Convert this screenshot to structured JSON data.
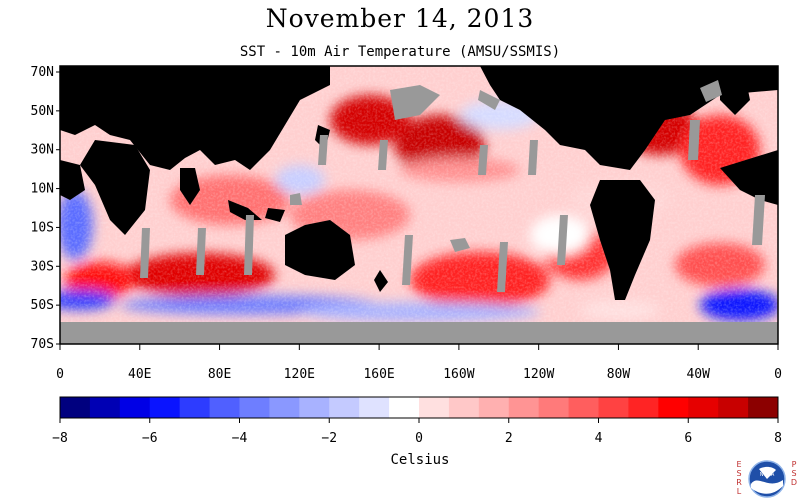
{
  "title": "November 14, 2013",
  "subtitle": "SST - 10m Air Temperature (AMSU/SSMIS)",
  "map": {
    "lat_labels": [
      "70N",
      "50N",
      "30N",
      "10N",
      "10S",
      "30S",
      "50S",
      "70S"
    ],
    "lon_labels": [
      "0",
      "40E",
      "80E",
      "120E",
      "160E",
      "160W",
      "120W",
      "80W",
      "40W",
      "0"
    ]
  },
  "colorbar": {
    "tick_labels": [
      "−8",
      "−6",
      "−4",
      "−2",
      "0",
      "2",
      "4",
      "6",
      "8"
    ],
    "unit_label": "Celsius",
    "colors": [
      "#00007f",
      "#0000b4",
      "#0000e6",
      "#0a14ff",
      "#2d3cff",
      "#5060ff",
      "#6e7eff",
      "#8a98ff",
      "#a8b2ff",
      "#c4caff",
      "#dfe2ff",
      "#ffffff",
      "#ffe0e0",
      "#ffc8c8",
      "#ffb0b0",
      "#ff9494",
      "#ff7a7a",
      "#ff5e5e",
      "#ff4242",
      "#ff2424",
      "#ff0000",
      "#e60000",
      "#c80000",
      "#8c0000"
    ]
  },
  "logos": {
    "left_text": "ESRL",
    "right_text": "PSD",
    "center_text": "NOAA"
  }
}
